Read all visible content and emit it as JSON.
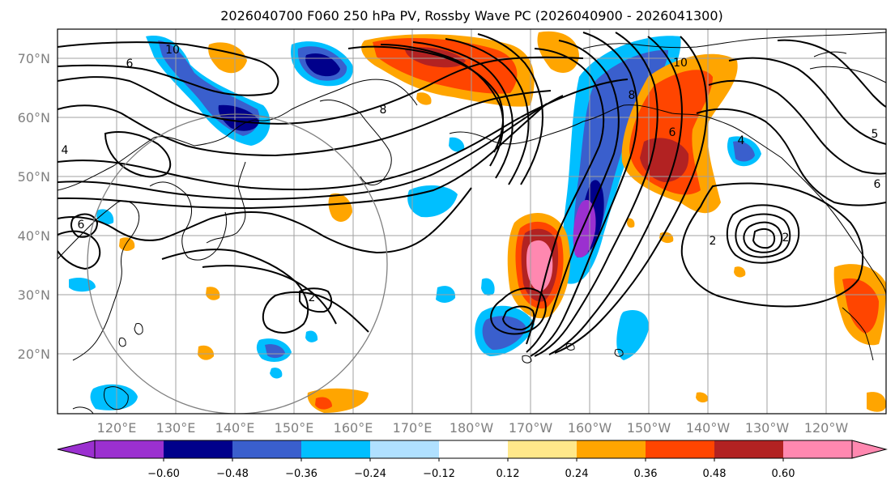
{
  "title": "2026040700 F060 250 hPa PV, Rossby Wave PC (2026040900 - 2026041300)",
  "map": {
    "lat_labels": [
      "70°N",
      "60°N",
      "50°N",
      "40°N",
      "30°N",
      "20°N"
    ],
    "lon_labels": [
      "120°E",
      "130°E",
      "140°E",
      "150°E",
      "160°E",
      "170°E",
      "180°W",
      "170°W",
      "160°W",
      "150°W",
      "140°W",
      "130°W",
      "120°W"
    ],
    "pv_contour_labels": [
      "10",
      "8",
      "6",
      "4",
      "2",
      "10",
      "8",
      "6",
      "6",
      "5",
      "4",
      "6",
      "2",
      "2"
    ]
  },
  "colorbar": {
    "tick_labels": [
      "−0.60",
      "−0.48",
      "−0.36",
      "−0.24",
      "−0.12",
      "0.12",
      "0.24",
      "0.36",
      "0.48",
      "0.60"
    ],
    "colors": [
      "#9b30d0",
      "#00008b",
      "#3a5fcd",
      "#00bfff",
      "#b0e0ff",
      "#ffffff",
      "#ffe88a",
      "#ffa500",
      "#ff4500",
      "#b22222",
      "#ff88b0",
      "#ff88b0"
    ]
  }
}
